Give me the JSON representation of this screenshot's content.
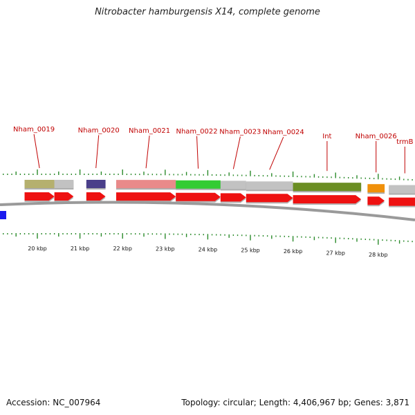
{
  "title": "Nitrobacter hamburgensis X14, complete genome",
  "footer": {
    "accession": "Accession: NC_007964",
    "topology": "Topology: circular; Length: 4,406,967 bp; Genes: 3,871"
  },
  "colors": {
    "cds": "#ee1111",
    "backbone": "#999999",
    "tick": "#2a8a2a",
    "label": "#c00000",
    "other_strand_feature": "#1a1aee"
  },
  "genes": [
    {
      "label": "Nham_0019",
      "start": 19.7,
      "end": 20.4,
      "color": "#b5b06e"
    },
    {
      "label": "",
      "start": 20.4,
      "end": 20.85,
      "color": "#c2c2c2"
    },
    {
      "label": "Nham_0020",
      "start": 21.15,
      "end": 21.6,
      "color": "#4a3f8a"
    },
    {
      "label": "Nham_0021",
      "start": 21.85,
      "end": 23.25,
      "color": "#e98a8a"
    },
    {
      "label": "Nham_0022",
      "start": 23.25,
      "end": 24.3,
      "color": "#33cc33"
    },
    {
      "label": "Nham_0023",
      "start": 24.3,
      "end": 24.9,
      "color": "#c2c2c2"
    },
    {
      "label": "Nham_0024",
      "start": 24.9,
      "end": 26.0,
      "color": "#c2c2c2"
    },
    {
      "label": "Int",
      "start": 26.0,
      "end": 27.6,
      "color": "#6b8e23"
    },
    {
      "label": "Nham_0026",
      "start": 27.75,
      "end": 28.15,
      "color": "#f0900a"
    },
    {
      "label": "trmB",
      "start": 28.25,
      "end": 29.0,
      "color": "#c2c2c2"
    }
  ],
  "kbp_ticks": [
    "20 kbp",
    "21 kbp",
    "22 kbp",
    "23 kbp",
    "24 kbp",
    "25 kbp",
    "26 kbp",
    "27 kbp",
    "28 kbp"
  ]
}
